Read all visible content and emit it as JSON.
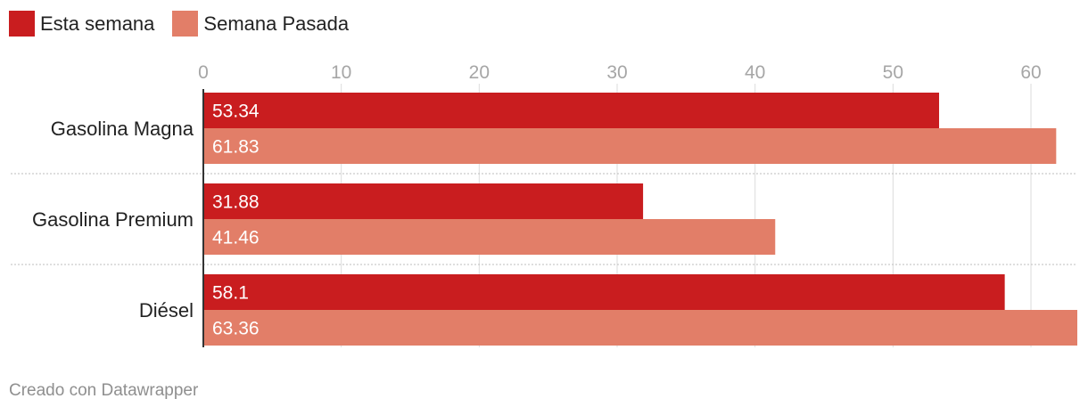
{
  "legend": [
    {
      "label": "Esta semana",
      "color": "#c91d1f"
    },
    {
      "label": "Semana Pasada",
      "color": "#e27e68"
    }
  ],
  "chart_data": {
    "type": "bar",
    "orientation": "horizontal",
    "categories": [
      "Gasolina Magna",
      "Gasolina Premium",
      "Diésel"
    ],
    "series": [
      {
        "name": "Esta semana",
        "values": [
          53.34,
          31.88,
          58.1
        ],
        "color": "#c91d1f"
      },
      {
        "name": "Semana Pasada",
        "values": [
          61.83,
          41.46,
          63.36
        ],
        "color": "#e27e68"
      }
    ],
    "value_labels": [
      [
        "53.34",
        "31.88",
        "58.1"
      ],
      [
        "61.83",
        "41.46",
        "63.36"
      ]
    ],
    "xticks": [
      "0",
      "10",
      "20",
      "30",
      "40",
      "50",
      "60"
    ],
    "xlim": [
      0,
      63.36
    ],
    "title": "",
    "xlabel": "",
    "ylabel": "",
    "grid": true,
    "legend_position": "top-left"
  },
  "footer": {
    "credit": "Creado con Datawrapper"
  }
}
